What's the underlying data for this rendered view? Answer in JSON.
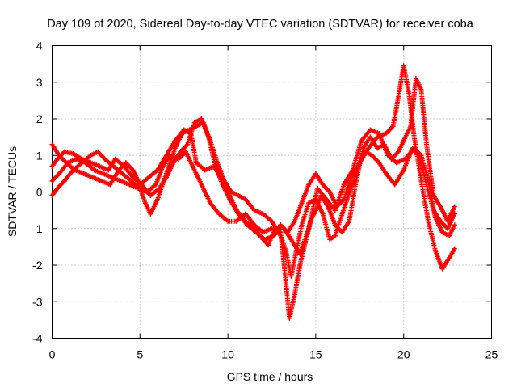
{
  "chart_data": {
    "type": "scatter",
    "title": "Day 109 of 2020, Sidereal Day-to-day VTEC variation (SDTVAR) for receiver coba",
    "xlabel": "GPS time / hours",
    "ylabel": "SDTVAR / TECUs",
    "xlim": [
      0,
      25
    ],
    "ylim": [
      -4,
      4
    ],
    "xticks": [
      "0",
      "5",
      "10",
      "15",
      "20",
      "25"
    ],
    "yticks": [
      "-4",
      "-3",
      "-2",
      "-1",
      "0",
      "1",
      "2",
      "3",
      "4"
    ],
    "grid": true,
    "marker": "+",
    "color": "#ff0000",
    "series": [
      {
        "points": [
          [
            0,
            -0.1
          ],
          [
            0.3,
            0.1
          ],
          [
            0.7,
            0.3
          ],
          [
            1.2,
            0.6
          ],
          [
            1.7,
            0.8
          ],
          [
            2.2,
            1.0
          ],
          [
            2.6,
            1.1
          ],
          [
            3.0,
            0.9
          ],
          [
            3.5,
            0.7
          ],
          [
            4.0,
            0.5
          ],
          [
            4.5,
            0.3
          ],
          [
            5.0,
            0.1
          ],
          [
            5.3,
            -0.3
          ],
          [
            5.6,
            -0.6
          ],
          [
            6.0,
            -0.2
          ],
          [
            6.5,
            0.5
          ],
          [
            7.0,
            1.2
          ],
          [
            7.4,
            1.6
          ],
          [
            7.8,
            1.7
          ],
          [
            8.2,
            1.8
          ],
          [
            8.6,
            1.9
          ],
          [
            9.0,
            1.4
          ],
          [
            9.4,
            0.8
          ],
          [
            9.8,
            0.3
          ],
          [
            10.2,
            0.0
          ],
          [
            10.6,
            -0.1
          ],
          [
            11.0,
            -0.2
          ],
          [
            11.5,
            -0.5
          ],
          [
            12.0,
            -0.6
          ],
          [
            12.5,
            -0.8
          ],
          [
            13.0,
            -1.2
          ],
          [
            13.3,
            -1.6
          ],
          [
            13.6,
            -2.3
          ],
          [
            13.9,
            -1.6
          ],
          [
            14.2,
            -0.9
          ],
          [
            14.6,
            -0.3
          ],
          [
            15.0,
            -0.2
          ],
          [
            15.4,
            -0.6
          ],
          [
            15.8,
            -1.3
          ],
          [
            16.1,
            -1.2
          ],
          [
            16.5,
            -0.6
          ],
          [
            17.0,
            0.1
          ],
          [
            17.5,
            0.8
          ],
          [
            18.0,
            1.2
          ],
          [
            18.5,
            1.5
          ],
          [
            19.0,
            1.6
          ],
          [
            19.4,
            1.8
          ],
          [
            19.7,
            2.6
          ],
          [
            20.0,
            3.45
          ],
          [
            20.3,
            2.7
          ],
          [
            20.6,
            1.5
          ],
          [
            21.0,
            0.3
          ],
          [
            21.4,
            -0.8
          ],
          [
            21.8,
            -1.6
          ],
          [
            22.2,
            -2.1
          ],
          [
            22.6,
            -1.8
          ],
          [
            22.9,
            -1.55
          ]
        ]
      },
      {
        "points": [
          [
            0,
            1.3
          ],
          [
            0.4,
            1.0
          ],
          [
            0.8,
            0.8
          ],
          [
            1.3,
            0.6
          ],
          [
            1.8,
            0.5
          ],
          [
            2.3,
            0.4
          ],
          [
            2.8,
            0.3
          ],
          [
            3.3,
            0.2
          ],
          [
            3.8,
            0.6
          ],
          [
            4.2,
            0.8
          ],
          [
            4.6,
            0.6
          ],
          [
            5.0,
            0.2
          ],
          [
            5.5,
            0.4
          ],
          [
            6.0,
            0.6
          ],
          [
            6.5,
            1.0
          ],
          [
            7.0,
            1.4
          ],
          [
            7.5,
            1.7
          ],
          [
            7.9,
            1.6
          ],
          [
            8.2,
            0.8
          ],
          [
            8.7,
            0.6
          ],
          [
            9.2,
            0.7
          ],
          [
            9.6,
            0.4
          ],
          [
            10.0,
            0.0
          ],
          [
            10.5,
            -0.5
          ],
          [
            11.0,
            -0.8
          ],
          [
            11.5,
            -1.0
          ],
          [
            12.0,
            -1.3
          ],
          [
            12.3,
            -1.45
          ],
          [
            12.6,
            -1.1
          ],
          [
            13.0,
            -0.9
          ],
          [
            13.4,
            -1.1
          ],
          [
            13.8,
            -0.8
          ],
          [
            14.2,
            -0.3
          ],
          [
            14.6,
            0.2
          ],
          [
            15.0,
            0.5
          ],
          [
            15.4,
            0.2
          ],
          [
            15.8,
            0.0
          ],
          [
            16.2,
            -0.4
          ],
          [
            16.6,
            -0.2
          ],
          [
            17.0,
            0.4
          ],
          [
            17.4,
            0.7
          ],
          [
            17.8,
            1.1
          ],
          [
            18.2,
            1.0
          ],
          [
            18.6,
            0.8
          ],
          [
            19.0,
            0.5
          ],
          [
            19.5,
            0.2
          ],
          [
            20.0,
            0.6
          ],
          [
            20.5,
            1.2
          ],
          [
            20.9,
            1.0
          ],
          [
            21.3,
            0.2
          ],
          [
            21.7,
            -0.5
          ],
          [
            22.1,
            -0.8
          ],
          [
            22.5,
            -1.0
          ],
          [
            22.9,
            -0.6
          ]
        ]
      },
      {
        "points": [
          [
            0,
            0.3
          ],
          [
            0.4,
            0.5
          ],
          [
            0.9,
            0.8
          ],
          [
            1.4,
            0.9
          ],
          [
            1.9,
            0.8
          ],
          [
            2.4,
            0.6
          ],
          [
            2.9,
            0.5
          ],
          [
            3.4,
            0.4
          ],
          [
            3.9,
            0.3
          ],
          [
            4.4,
            0.2
          ],
          [
            4.9,
            0.1
          ],
          [
            5.4,
            0.0
          ],
          [
            5.9,
            0.2
          ],
          [
            6.3,
            0.7
          ],
          [
            6.7,
            1.0
          ],
          [
            7.2,
            0.9
          ],
          [
            7.6,
            1.1
          ],
          [
            8.0,
            0.7
          ],
          [
            8.5,
            0.2
          ],
          [
            9.0,
            -0.3
          ],
          [
            9.5,
            -0.6
          ],
          [
            10.0,
            -0.8
          ],
          [
            10.5,
            -0.8
          ],
          [
            11.0,
            -0.6
          ],
          [
            11.5,
            -0.9
          ],
          [
            12.0,
            -1.1
          ],
          [
            12.5,
            -1.0
          ],
          [
            13.0,
            -1.1
          ],
          [
            13.2,
            -2.0
          ],
          [
            13.5,
            -3.45
          ],
          [
            13.8,
            -2.8
          ],
          [
            14.1,
            -2.0
          ],
          [
            14.4,
            -1.4
          ],
          [
            14.7,
            -0.8
          ],
          [
            15.0,
            -0.5
          ],
          [
            15.3,
            -0.1
          ],
          [
            15.7,
            -0.4
          ],
          [
            16.1,
            -0.9
          ],
          [
            16.5,
            -1.1
          ],
          [
            16.9,
            -0.8
          ],
          [
            17.3,
            0.3
          ],
          [
            17.7,
            1.2
          ],
          [
            18.1,
            1.5
          ],
          [
            18.5,
            1.2
          ],
          [
            18.9,
            1.3
          ],
          [
            19.3,
            0.9
          ],
          [
            19.7,
            1.1
          ],
          [
            20.1,
            1.5
          ],
          [
            20.4,
            1.8
          ],
          [
            20.7,
            3.1
          ],
          [
            21.0,
            2.8
          ],
          [
            21.3,
            1.3
          ],
          [
            21.7,
            -0.1
          ],
          [
            22.1,
            -0.4
          ],
          [
            22.5,
            -0.8
          ],
          [
            22.9,
            -0.4
          ]
        ]
      },
      {
        "points": [
          [
            0,
            0.7
          ],
          [
            0.3,
            0.9
          ],
          [
            0.7,
            1.1
          ],
          [
            1.2,
            1.05
          ],
          [
            1.7,
            0.9
          ],
          [
            2.2,
            0.8
          ],
          [
            2.7,
            0.7
          ],
          [
            3.2,
            0.6
          ],
          [
            3.6,
            0.9
          ],
          [
            4.1,
            0.7
          ],
          [
            4.6,
            0.4
          ],
          [
            5.1,
            0.2
          ],
          [
            5.6,
            -0.1
          ],
          [
            6.1,
            0.1
          ],
          [
            6.5,
            0.4
          ],
          [
            6.9,
            0.8
          ],
          [
            7.3,
            1.1
          ],
          [
            7.7,
            1.3
          ],
          [
            8.1,
            1.9
          ],
          [
            8.5,
            2.0
          ],
          [
            8.9,
            1.5
          ],
          [
            9.3,
            0.7
          ],
          [
            9.7,
            0.2
          ],
          [
            10.1,
            -0.2
          ],
          [
            10.6,
            -0.6
          ],
          [
            11.1,
            -0.9
          ],
          [
            11.6,
            -1.1
          ],
          [
            12.1,
            -1.3
          ],
          [
            12.6,
            -1.2
          ],
          [
            13.1,
            -0.95
          ],
          [
            13.6,
            -1.3
          ],
          [
            14.1,
            -1.7
          ],
          [
            14.6,
            -1.0
          ],
          [
            15.1,
            0.1
          ],
          [
            15.6,
            -0.2
          ],
          [
            16.1,
            -0.5
          ],
          [
            16.6,
            0.2
          ],
          [
            17.1,
            0.6
          ],
          [
            17.6,
            1.4
          ],
          [
            18.1,
            1.7
          ],
          [
            18.6,
            1.6
          ],
          [
            19.1,
            1.0
          ],
          [
            19.6,
            0.8
          ],
          [
            20.1,
            0.9
          ],
          [
            20.6,
            1.2
          ],
          [
            21.0,
            1.0
          ],
          [
            21.4,
            0.3
          ],
          [
            21.8,
            -0.7
          ],
          [
            22.2,
            -1.1
          ],
          [
            22.6,
            -1.2
          ],
          [
            22.9,
            -0.9
          ]
        ]
      }
    ]
  }
}
